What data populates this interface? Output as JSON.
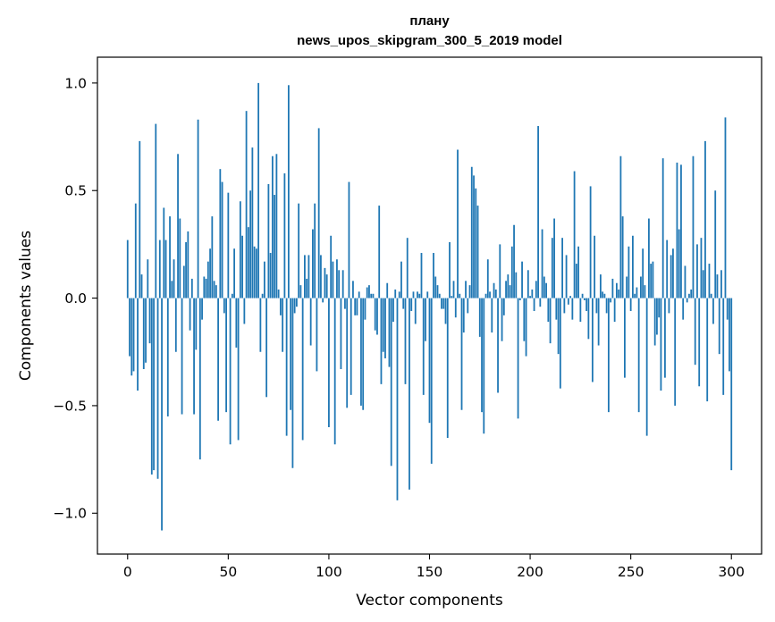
{
  "chart_data": {
    "type": "bar",
    "title_line1": "плану",
    "title_line2": "news_upos_skipgram_300_5_2019 model",
    "xlabel": "Vector components",
    "ylabel": "Components values",
    "xlim": [
      -15,
      315
    ],
    "ylim": [
      -1.19,
      1.12
    ],
    "xticks": [
      0,
      50,
      100,
      150,
      200,
      250,
      300
    ],
    "xtick_labels": [
      "0",
      "50",
      "100",
      "150",
      "200",
      "250",
      "300"
    ],
    "yticks": [
      -1.0,
      -0.5,
      0.0,
      0.5,
      1.0
    ],
    "ytick_labels": [
      "−1.0",
      "−0.5",
      "0.0",
      "0.5",
      "1.0"
    ],
    "bar_color": "#1f77b4",
    "grid": false,
    "legend": "none",
    "values": [
      0.27,
      -0.27,
      -0.36,
      -0.34,
      0.44,
      -0.43,
      0.73,
      0.11,
      -0.33,
      -0.3,
      0.18,
      -0.21,
      -0.82,
      -0.8,
      0.81,
      -0.84,
      0.27,
      -1.08,
      0.42,
      0.27,
      -0.55,
      0.38,
      0.08,
      0.18,
      -0.25,
      0.67,
      0.37,
      -0.54,
      0.15,
      0.26,
      0.31,
      -0.15,
      0.09,
      -0.54,
      -0.24,
      0.83,
      -0.75,
      -0.1,
      0.1,
      0.09,
      0.17,
      0.23,
      0.38,
      0.08,
      0.06,
      -0.57,
      0.6,
      0.54,
      -0.07,
      -0.53,
      0.49,
      -0.68,
      0.02,
      0.23,
      -0.23,
      -0.66,
      0.45,
      0.29,
      -0.12,
      0.87,
      0.33,
      0.5,
      0.7,
      0.24,
      0.23,
      1.0,
      -0.25,
      0.02,
      0.17,
      -0.46,
      0.53,
      0.21,
      0.66,
      0.48,
      0.67,
      0.04,
      -0.08,
      -0.25,
      0.58,
      -0.64,
      0.99,
      -0.52,
      -0.79,
      -0.07,
      -0.04,
      0.44,
      0.06,
      -0.66,
      0.2,
      0.09,
      0.2,
      -0.22,
      0.32,
      0.44,
      -0.34,
      0.79,
      0.2,
      -0.02,
      0.14,
      0.11,
      -0.6,
      0.29,
      0.17,
      -0.68,
      0.18,
      0.13,
      -0.33,
      0.13,
      -0.05,
      -0.51,
      0.54,
      -0.45,
      0.08,
      -0.08,
      -0.08,
      0.03,
      -0.5,
      -0.52,
      -0.1,
      0.05,
      0.06,
      0.02,
      0.02,
      -0.15,
      -0.17,
      0.43,
      -0.4,
      -0.25,
      -0.28,
      0.07,
      -0.32,
      -0.78,
      -0.11,
      0.04,
      -0.94,
      0.03,
      0.17,
      -0.05,
      -0.4,
      0.28,
      -0.89,
      -0.06,
      0.03,
      -0.12,
      0.03,
      0.02,
      0.21,
      -0.45,
      -0.2,
      0.03,
      -0.58,
      -0.77,
      0.21,
      0.1,
      0.06,
      0.02,
      -0.05,
      -0.05,
      -0.12,
      -0.65,
      0.26,
      0.01,
      0.08,
      -0.09,
      0.69,
      0.02,
      -0.52,
      -0.16,
      0.08,
      -0.07,
      0.06,
      0.61,
      0.57,
      0.51,
      0.43,
      -0.18,
      -0.53,
      -0.63,
      0.02,
      0.18,
      0.03,
      -0.16,
      0.07,
      0.04,
      -0.44,
      0.25,
      -0.2,
      -0.08,
      0.08,
      0.11,
      0.06,
      0.24,
      0.34,
      0.12,
      -0.56,
      -0.01,
      0.17,
      -0.2,
      -0.27,
      0.13,
      0.01,
      0.04,
      -0.06,
      0.08,
      0.8,
      -0.04,
      0.32,
      0.1,
      0.07,
      -0.11,
      -0.21,
      0.28,
      0.37,
      -0.1,
      -0.26,
      -0.42,
      0.28,
      -0.07,
      0.2,
      -0.03,
      0.01,
      -0.1,
      0.59,
      0.16,
      0.24,
      -0.11,
      0.02,
      -0.01,
      -0.06,
      -0.19,
      0.52,
      -0.39,
      0.29,
      -0.07,
      -0.22,
      0.11,
      0.03,
      0.02,
      -0.07,
      -0.53,
      -0.02,
      0.09,
      -0.11,
      0.07,
      0.04,
      0.66,
      0.38,
      -0.37,
      0.1,
      0.24,
      -0.06,
      0.29,
      0.02,
      0.05,
      -0.53,
      0.1,
      0.23,
      0.06,
      -0.64,
      0.37,
      0.16,
      0.17,
      -0.22,
      -0.17,
      -0.09,
      -0.43,
      0.65,
      -0.37,
      0.27,
      -0.07,
      0.2,
      0.23,
      -0.5,
      0.63,
      0.32,
      0.62,
      -0.1,
      0.15,
      -0.02,
      0.02,
      0.04,
      0.66,
      -0.31,
      0.25,
      -0.41,
      0.28,
      0.13,
      0.73,
      -0.48,
      0.16,
      0.02,
      -0.12,
      0.5,
      0.11,
      -0.26,
      0.13,
      -0.45,
      0.84,
      -0.1,
      -0.34,
      -0.8
    ]
  }
}
